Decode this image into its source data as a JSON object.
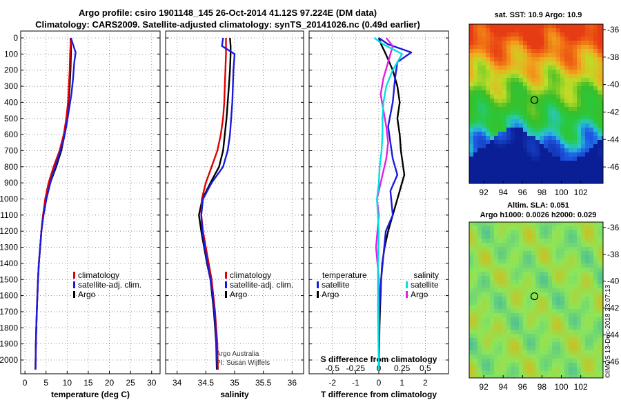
{
  "header": {
    "title_line1": "Argo profile: csiro 1901148_145 26-Oct-2014 41.12S 97.224E (DM data)",
    "title_line2": "Climatology: CARS2009. Satellite-adjusted climatology: synTS_20141026.nc (0.49d earlier)"
  },
  "colors": {
    "climatology": "#e00000",
    "satellite": "#1a1adf",
    "argo": "#000000",
    "sal_satellite": "#00e0e0",
    "sal_argo": "#e020e0"
  },
  "chart_data": [
    {
      "type": "line",
      "name": "temperature",
      "xlabel": "temperature (deg C)",
      "ylabel": "",
      "xlim": [
        -1,
        32
      ],
      "ylim": [
        2080,
        0
      ],
      "xticks": [
        "0",
        "5",
        "10",
        "15",
        "20",
        "25",
        "30"
      ],
      "xtick_values": [
        0,
        5,
        10,
        15,
        20,
        25,
        30
      ],
      "yticks": [
        "0",
        "100",
        "200",
        "300",
        "400",
        "500",
        "600",
        "700",
        "800",
        "900",
        "1000",
        "1100",
        "1200",
        "1300",
        "1400",
        "1500",
        "1600",
        "1700",
        "1800",
        "1900",
        "2000"
      ],
      "ytick_values": [
        0,
        100,
        200,
        300,
        400,
        500,
        600,
        700,
        800,
        900,
        1000,
        1100,
        1200,
        1300,
        1400,
        1500,
        1600,
        1700,
        1800,
        1900,
        2000
      ],
      "legend": [
        "climatology",
        "satellite-adj. clim.",
        "Argo"
      ],
      "series": [
        {
          "name": "climatology",
          "color": "#e00000",
          "x": [
            10.9,
            10.8,
            10.7,
            10.6,
            10.4,
            10.2,
            9.8,
            9.2,
            8.2,
            6.8,
            5.6,
            4.8,
            4.3,
            3.9,
            3.6,
            3.3,
            3.1,
            2.95,
            2.8,
            2.7,
            2.6,
            2.5
          ],
          "y": [
            0,
            50,
            100,
            200,
            300,
            400,
            500,
            600,
            700,
            800,
            900,
            1000,
            1100,
            1200,
            1300,
            1400,
            1500,
            1600,
            1700,
            1800,
            1900,
            2060
          ]
        },
        {
          "name": "satellite-adj. clim.",
          "color": "#1a1adf",
          "x": [
            10.9,
            11.5,
            12.0,
            11.7,
            11.4,
            11.0,
            10.4,
            9.8,
            9.0,
            7.8,
            6.2,
            5.1,
            4.4,
            3.9,
            3.6,
            3.3,
            3.1,
            2.95,
            2.8,
            2.7,
            2.6,
            2.5
          ],
          "y": [
            0,
            50,
            90,
            150,
            250,
            350,
            450,
            550,
            650,
            750,
            880,
            1000,
            1100,
            1200,
            1300,
            1400,
            1500,
            1600,
            1700,
            1800,
            1900,
            2060
          ]
        },
        {
          "name": "Argo",
          "color": "#000000",
          "x": [
            10.8,
            10.9,
            10.9,
            10.8,
            10.6,
            10.3,
            10.0,
            9.4,
            8.6,
            7.4,
            6.0,
            5.0,
            4.3,
            3.9,
            3.6,
            3.3,
            3.1,
            2.95,
            2.8,
            2.7,
            2.6,
            2.5
          ],
          "y": [
            0,
            50,
            100,
            200,
            300,
            400,
            500,
            600,
            700,
            800,
            900,
            1000,
            1100,
            1200,
            1300,
            1400,
            1500,
            1600,
            1700,
            1800,
            1900,
            2060
          ]
        }
      ]
    },
    {
      "type": "line",
      "name": "salinity",
      "xlabel": "salinity",
      "xlim": [
        33.8,
        36.2
      ],
      "ylim": [
        2080,
        0
      ],
      "xticks": [
        "34",
        "34.5",
        "35",
        "35.5",
        "36"
      ],
      "xtick_values": [
        34,
        34.5,
        35,
        35.5,
        36
      ],
      "legend": [
        "climatology",
        "satellite-adj. clim.",
        "Argo"
      ],
      "annotation": [
        "Argo Australia",
        "PI: Susan Wijffels"
      ],
      "series": [
        {
          "name": "climatology",
          "color": "#e00000",
          "x": [
            34.85,
            34.85,
            34.85,
            34.84,
            34.83,
            34.82,
            34.8,
            34.76,
            34.7,
            34.6,
            34.5,
            34.43,
            34.42,
            34.45,
            34.5,
            34.55,
            34.6,
            34.63,
            34.66,
            34.68,
            34.7,
            34.71
          ],
          "y": [
            0,
            50,
            100,
            200,
            300,
            400,
            500,
            600,
            700,
            800,
            900,
            1000,
            1100,
            1200,
            1300,
            1400,
            1500,
            1600,
            1700,
            1800,
            1900,
            2060
          ]
        },
        {
          "name": "satellite-adj. clim.",
          "color": "#1a1adf",
          "x": [
            34.8,
            34.78,
            35.0,
            34.98,
            34.97,
            34.96,
            34.94,
            34.92,
            34.88,
            34.8,
            34.6,
            34.45,
            34.42,
            34.44,
            34.48,
            34.53,
            34.58,
            34.62,
            34.65,
            34.67,
            34.68,
            34.7
          ],
          "y": [
            0,
            50,
            100,
            200,
            300,
            400,
            500,
            600,
            700,
            800,
            900,
            1000,
            1100,
            1200,
            1300,
            1400,
            1500,
            1600,
            1700,
            1800,
            1900,
            2060
          ]
        },
        {
          "name": "Argo",
          "color": "#000000",
          "x": [
            34.92,
            34.93,
            34.93,
            34.92,
            34.9,
            34.88,
            34.86,
            34.83,
            34.8,
            34.73,
            34.58,
            34.44,
            34.38,
            34.42,
            34.47,
            34.52,
            34.58,
            34.61,
            34.64,
            34.66,
            34.68,
            34.69
          ],
          "y": [
            0,
            50,
            100,
            200,
            300,
            400,
            500,
            600,
            700,
            800,
            900,
            1000,
            1100,
            1200,
            1300,
            1400,
            1500,
            1600,
            1700,
            1800,
            1900,
            2060
          ]
        }
      ]
    },
    {
      "type": "line",
      "name": "differences",
      "xlabel": "T difference from climatology",
      "top_label": "S difference from climatology",
      "xlim": [
        -3,
        3
      ],
      "ylim": [
        2080,
        0
      ],
      "xticks": [
        "-2",
        "-1",
        "0",
        "1",
        "2"
      ],
      "xtick_values": [
        -2,
        -1,
        0,
        1,
        2
      ],
      "sticks": [
        "-0.5",
        "-0.25",
        "0",
        "0.25",
        "0.5"
      ],
      "stick_values": [
        -0.5,
        -0.25,
        0,
        0.25,
        0.5
      ],
      "legend_temperature": {
        "title": "temperature",
        "items": [
          "satellite",
          "Argo"
        ]
      },
      "legend_salinity": {
        "title": "salinity",
        "items": [
          "satellite",
          "Argo"
        ]
      },
      "series": [
        {
          "name": "T satellite",
          "color": "#1a1adf",
          "x": [
            0.0,
            0.4,
            1.4,
            0.8,
            0.7,
            0.6,
            0.4,
            0.5,
            0.6,
            0.8,
            0.5,
            0.6,
            0.3,
            0.2,
            0.1,
            0.05,
            0.03,
            0.02,
            0.01,
            0.0
          ],
          "y": [
            0,
            40,
            90,
            150,
            250,
            400,
            550,
            650,
            750,
            850,
            950,
            1100,
            1200,
            1350,
            1500,
            1600,
            1700,
            1800,
            1900,
            2060
          ]
        },
        {
          "name": "T Argo",
          "color": "#000000",
          "x": [
            0.0,
            0.1,
            0.3,
            0.6,
            0.8,
            0.9,
            0.8,
            0.9,
            0.95,
            1.1,
            0.9,
            0.6,
            0.4,
            0.25,
            0.15,
            0.1,
            0.05,
            0.03,
            0.02,
            0.0
          ],
          "y": [
            0,
            40,
            100,
            200,
            300,
            400,
            500,
            600,
            700,
            850,
            950,
            1100,
            1200,
            1300,
            1400,
            1500,
            1700,
            1800,
            1900,
            2060
          ]
        },
        {
          "name": "S satellite",
          "color": "#00e0e0",
          "x": [
            -0.05,
            0.05,
            0.25,
            0.15,
            0.08,
            0.05,
            0.04,
            0.04,
            0.03,
            0.01,
            0.0,
            -0.02,
            0.0,
            -0.01,
            -0.01,
            0.0
          ],
          "y": [
            0,
            40,
            100,
            200,
            300,
            400,
            500,
            600,
            700,
            800,
            900,
            1000,
            1200,
            1400,
            1700,
            2060
          ]
        },
        {
          "name": "S Argo",
          "color": "#e020e0",
          "x": [
            0.08,
            0.15,
            0.1,
            0.05,
            0.02,
            0.05,
            0.08,
            0.1,
            0.08,
            0.02,
            -0.02,
            0.0,
            -0.03,
            0.0,
            0.0
          ],
          "y": [
            0,
            50,
            150,
            250,
            350,
            450,
            550,
            650,
            750,
            900,
            1000,
            1100,
            1300,
            1500,
            2060
          ]
        }
      ]
    }
  ],
  "maps": {
    "sst_title": "sat. SST: 10.9 Argo: 10.9",
    "sla_title1": "Altim. SLA: 0.051",
    "sla_title2": "Argo h1000: 0.0026 h2000: 0.029",
    "lat_labels": [
      "-36",
      "-38",
      "-40",
      "-42",
      "-44",
      "-46"
    ],
    "lat_values": [
      -36,
      -38,
      -40,
      -42,
      -44,
      -46
    ],
    "lon_labels": [
      "92",
      "94",
      "96",
      "98",
      "100",
      "102"
    ],
    "lon_values": [
      92,
      94,
      96,
      98,
      100,
      102
    ],
    "lon_range": [
      90.5,
      104.3
    ],
    "lat_range": [
      -35.6,
      -47.2
    ],
    "float_position": {
      "lon": 97.224,
      "lat": -41.12
    }
  },
  "credits": {
    "line1": "Argo Australia",
    "line2": "PI: Susan Wijffels",
    "stamp": "©IMOS 13-Dec-2018 23:07:13"
  }
}
